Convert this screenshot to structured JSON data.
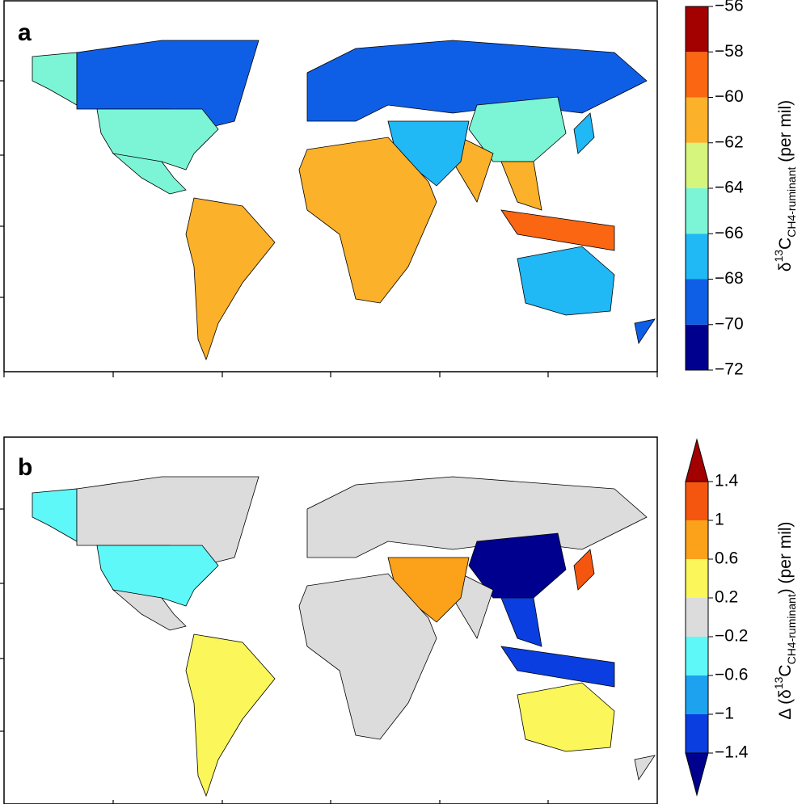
{
  "chart_data": [
    {
      "type": "choropleth",
      "panel_label": "a",
      "colorbar": {
        "label": {
          "prefix": "δ",
          "sup": "13",
          "main": "C",
          "sub": "CH4-ruminant",
          "suffix": " (per mil)"
        },
        "ylim": [
          -72,
          -56
        ],
        "ticks": [
          {
            "value": -72,
            "label": "−72"
          },
          {
            "value": -70,
            "label": "−70"
          },
          {
            "value": -68,
            "label": "−68"
          },
          {
            "value": -66,
            "label": "−66"
          },
          {
            "value": -64,
            "label": "−64"
          },
          {
            "value": -62,
            "label": "−62"
          },
          {
            "value": -60,
            "label": "−60"
          },
          {
            "value": -58,
            "label": "−58"
          },
          {
            "value": -56,
            "label": "−56"
          }
        ],
        "colors": [
          "#00008f",
          "#0f5fe6",
          "#20b8f5",
          "#7cf5d6",
          "#d6f57c",
          "#fbb12a",
          "#fa6612",
          "#a30000"
        ]
      }
    },
    {
      "type": "choropleth",
      "panel_label": "b",
      "colorbar": {
        "label": {
          "prefix": "Δ (δ",
          "sup": "13",
          "main": "C",
          "sub": "CH4-ruminant",
          "suffix": ") (per mil)"
        },
        "ylim": [
          -1.4,
          1.4
        ],
        "ticks": [
          {
            "value": -1.4,
            "label": "−1.4"
          },
          {
            "value": -1,
            "label": "−1"
          },
          {
            "value": -0.6,
            "label": "−0.6"
          },
          {
            "value": -0.2,
            "label": "−0.2"
          },
          0.2,
          0.6,
          1,
          1.4
        ],
        "colors": [
          "#0a3ee0",
          "#1da2f0",
          "#5ff8f8",
          "#dcdcdc",
          "#fbf65a",
          "#fba21a",
          "#f5560f"
        ],
        "extend_colors": {
          "min": "#00008f",
          "max": "#a30000"
        }
      }
    }
  ]
}
